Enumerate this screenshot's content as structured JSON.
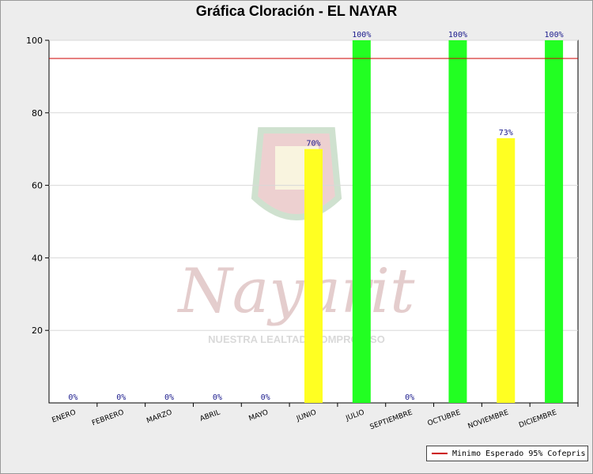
{
  "chart_data": {
    "type": "bar",
    "title": "Gráfica Cloración - EL NAYAR",
    "categories": [
      "ENERO",
      "FEBRERO",
      "MARZO",
      "ABRIL",
      "MAYO",
      "JUNIO",
      "JULIO",
      "SEPTIEMBRE",
      "OCTUBRE",
      "NOVIEMBRE",
      "DICIEMBRE"
    ],
    "values": [
      0,
      0,
      0,
      0,
      0,
      70,
      100,
      0,
      100,
      73,
      100
    ],
    "data_labels": [
      "0%",
      "0%",
      "0%",
      "0%",
      "0%",
      "70%",
      "100%",
      "0%",
      "100%",
      "73%",
      "100%"
    ],
    "bar_colors": [
      "#ffff22",
      "#ffff22",
      "#ffff22",
      "#ffff22",
      "#ffff22",
      "#ffff22",
      "#22ff22",
      "#ffff22",
      "#22ff22",
      "#ffff22",
      "#22ff22"
    ],
    "ylim": [
      0,
      100
    ],
    "yticks": [
      20,
      40,
      60,
      80,
      100
    ],
    "grid": true,
    "reference_line": {
      "value": 95,
      "color": "#cc0000",
      "label": "Minimo Esperado 95% Cofepris"
    },
    "legend_position": "bottom-right",
    "watermark": {
      "text": "Nayarit",
      "subtext": "NUESTRA LEALTAD, COMPROMISO"
    }
  }
}
